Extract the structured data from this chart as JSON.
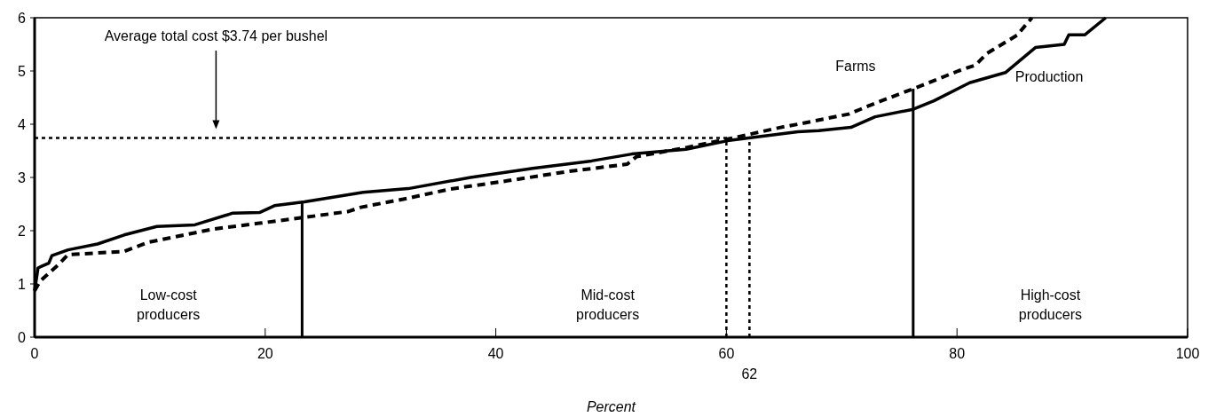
{
  "chart_data": {
    "type": "line",
    "xlabel": "Percent",
    "xlim": [
      0,
      100
    ],
    "xticks": [
      0,
      20,
      40,
      60,
      80,
      100
    ],
    "ylim": [
      0,
      6
    ],
    "yticks": [
      0,
      1,
      2,
      3,
      4,
      5,
      6
    ],
    "grid": false,
    "marker": "none",
    "series": [
      {
        "name": "Production",
        "color": "#000000",
        "line_style": "solid",
        "x": [
          0,
          0.3,
          0.6,
          1.23,
          1.5,
          2.9,
          5.46,
          7.77,
          10.6,
          13.9,
          17.2,
          19.5,
          20.8,
          23.4,
          28.5,
          32.4,
          37.8,
          43.2,
          48.3,
          51.8,
          56.5,
          60.1,
          66.2,
          68.0,
          70.8,
          72.9,
          76.2,
          78.0,
          81.1,
          84.2,
          86.8,
          89.3,
          89.7,
          91.1,
          92.9
        ],
        "values": [
          0.87,
          1.3,
          1.33,
          1.39,
          1.53,
          1.64,
          1.75,
          1.92,
          2.08,
          2.11,
          2.33,
          2.34,
          2.47,
          2.54,
          2.72,
          2.79,
          3.0,
          3.17,
          3.31,
          3.44,
          3.53,
          3.69,
          3.86,
          3.88,
          3.94,
          4.14,
          4.28,
          4.44,
          4.78,
          4.97,
          5.44,
          5.5,
          5.68,
          5.68,
          6.0
        ]
      },
      {
        "name": "Farms",
        "color": "#000000",
        "line_style": "dashed",
        "x": [
          0,
          0.46,
          2.1,
          2.9,
          7.77,
          9.8,
          15.5,
          19.5,
          23.4,
          27.2,
          28.3,
          32.4,
          36.0,
          41.1,
          46.2,
          51.4,
          52.2,
          56.5,
          60.1,
          64.7,
          66.2,
          70.6,
          73.2,
          76.5,
          80.1,
          81.6,
          82.6,
          85.2,
          86.5
        ],
        "values": [
          0.87,
          1.05,
          1.37,
          1.55,
          1.61,
          1.78,
          2.03,
          2.14,
          2.25,
          2.36,
          2.44,
          2.61,
          2.78,
          2.94,
          3.11,
          3.25,
          3.39,
          3.56,
          3.72,
          3.94,
          4.0,
          4.19,
          4.42,
          4.69,
          5.0,
          5.11,
          5.33,
          5.67,
          6.0
        ]
      }
    ],
    "ref_lines": [
      {
        "axis": "y",
        "value": 3.74,
        "line_style": "dotted",
        "color": "#000000"
      },
      {
        "axis": "x",
        "value": 23.2,
        "line_style": "solid",
        "color": "#000000"
      },
      {
        "axis": "x",
        "value": 60,
        "line_style": "dotted",
        "color": "#000000"
      },
      {
        "axis": "x",
        "value": 62,
        "label": "62",
        "line_style": "dotted",
        "color": "#000000"
      },
      {
        "axis": "x",
        "value": 76.2,
        "line_style": "solid",
        "color": "#000000"
      }
    ],
    "annotations": [
      "Average total cost $3.74 per bushel",
      "Low-cost producers",
      "Mid-cost producers",
      "High-cost producers"
    ]
  }
}
